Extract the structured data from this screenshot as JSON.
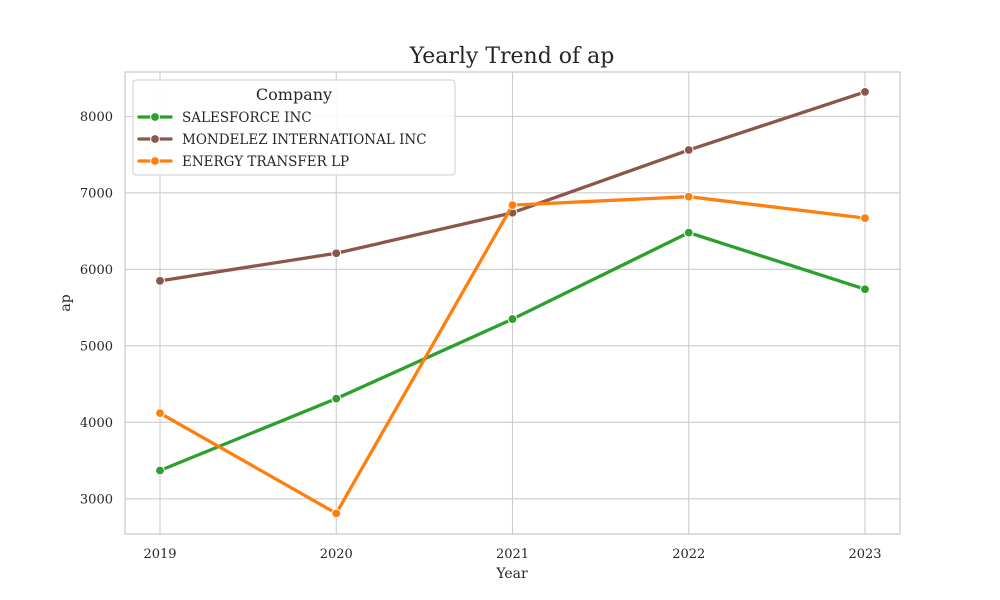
{
  "chart_data": {
    "type": "line",
    "title": "Yearly Trend of ap",
    "xlabel": "Year",
    "ylabel": "ap",
    "x": [
      2019,
      2020,
      2021,
      2022,
      2023
    ],
    "xticks": [
      "2019",
      "2020",
      "2021",
      "2022",
      "2023"
    ],
    "yticks": [
      "3000",
      "4000",
      "5000",
      "6000",
      "7000",
      "8000"
    ],
    "ylim": [
      2540,
      8580
    ],
    "grid": true,
    "legend": {
      "title": "Company",
      "placement": "top-left"
    },
    "series": [
      {
        "name": "SALESFORCE INC",
        "color": "#2ca02c",
        "values": [
          3370,
          4310,
          5350,
          6480,
          5740
        ]
      },
      {
        "name": "MONDELEZ INTERNATIONAL INC",
        "color": "#8c564b",
        "values": [
          5850,
          6210,
          6740,
          7560,
          8320
        ]
      },
      {
        "name": "ENERGY TRANSFER LP",
        "color": "#ff7f0e",
        "values": [
          4120,
          2810,
          6840,
          6950,
          6670
        ]
      }
    ]
  }
}
